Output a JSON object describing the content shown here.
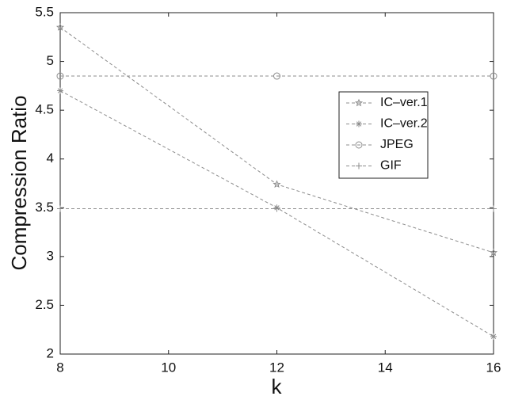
{
  "chart_data": {
    "type": "line",
    "x_label": "k",
    "y_label": "Compression Ratio",
    "x": [
      8,
      12,
      16
    ],
    "series": [
      {
        "name": "IC–ver.1",
        "marker": "star",
        "color": "#8c8c8c",
        "values": [
          5.35,
          3.74,
          3.04
        ]
      },
      {
        "name": "IC–ver.2",
        "marker": "asterisk",
        "color": "#8c8c8c",
        "values": [
          4.7,
          3.5,
          2.18
        ]
      },
      {
        "name": "JPEG",
        "marker": "circle",
        "color": "#8c8c8c",
        "values": [
          4.85,
          4.85,
          4.85
        ]
      },
      {
        "name": "GIF",
        "marker": "plus",
        "color": "#8c8c8c",
        "values": [
          3.49,
          3.49,
          3.49
        ]
      }
    ],
    "xlim": [
      8,
      16
    ],
    "xticks": [
      8,
      10,
      12,
      14,
      16
    ],
    "ylim": [
      2,
      5.5
    ],
    "yticks": [
      2,
      2.5,
      3,
      3.5,
      4,
      4.5,
      5,
      5.5
    ],
    "grid": false,
    "legend": "upper right"
  }
}
